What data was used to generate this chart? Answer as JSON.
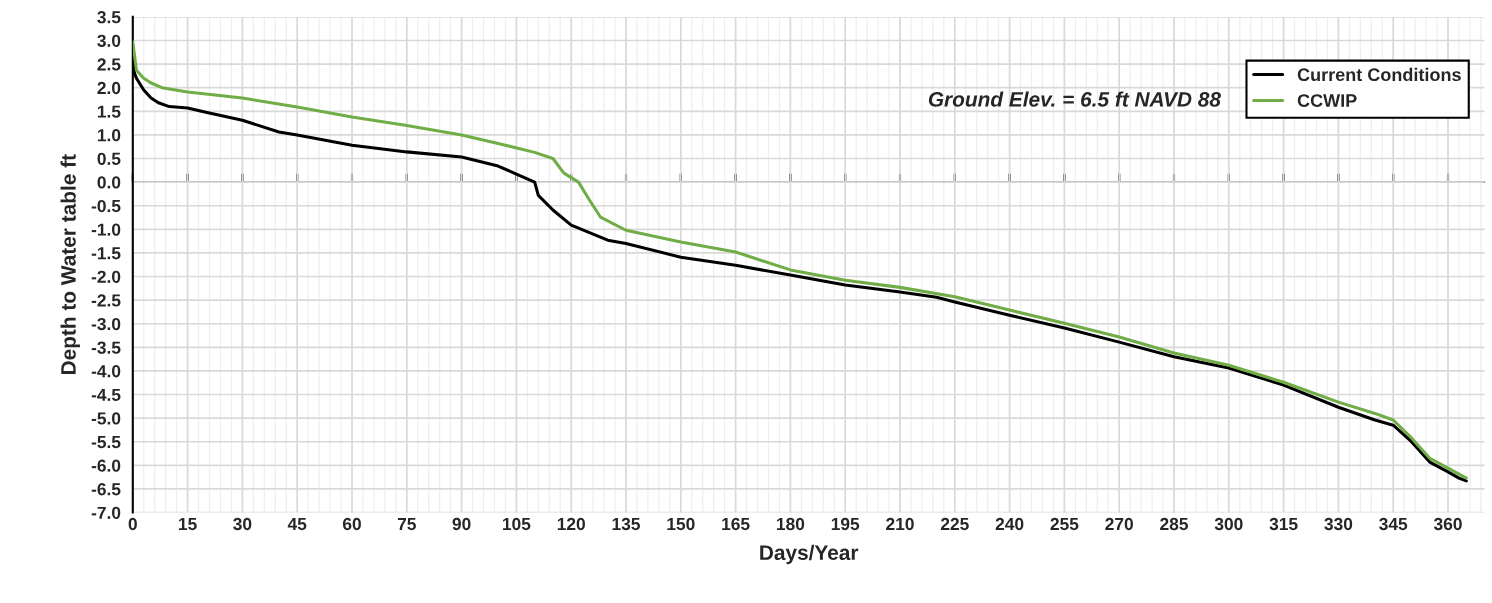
{
  "chart_data": {
    "type": "line",
    "xlabel": "Days/Year",
    "ylabel": "Depth to Water table ft",
    "annotations": [
      "Ground Elev. = 6.5 ft NAVD 88"
    ],
    "xlim": [
      0,
      370
    ],
    "xticks": [
      0,
      15,
      30,
      45,
      60,
      75,
      90,
      105,
      120,
      135,
      150,
      165,
      180,
      195,
      210,
      225,
      240,
      255,
      270,
      285,
      300,
      315,
      330,
      345,
      360
    ],
    "ylim": [
      -7,
      3.5
    ],
    "yticks": [
      {
        "value": 3.5,
        "label": "3.5"
      },
      {
        "value": 3,
        "label": "3.0"
      },
      {
        "value": 2.5,
        "label": "2.5"
      },
      {
        "value": 2,
        "label": "2.0"
      },
      {
        "value": 1.5,
        "label": "1.5"
      },
      {
        "value": 1,
        "label": "1.0"
      },
      {
        "value": 0.5,
        "label": "0.5"
      },
      {
        "value": 0,
        "label": "0.0"
      },
      {
        "value": -0.5,
        "label": "-0.5"
      },
      {
        "value": -1,
        "label": "-1.0"
      },
      {
        "value": -1.5,
        "label": "-1.5"
      },
      {
        "value": -2,
        "label": "-2.0"
      },
      {
        "value": -2.5,
        "label": "-2.5"
      },
      {
        "value": -3,
        "label": "-3.0"
      },
      {
        "value": -3.5,
        "label": "-3.5"
      },
      {
        "value": -4,
        "label": "-4.0"
      },
      {
        "value": -4.5,
        "label": "-4.5"
      },
      {
        "value": -5,
        "label": "-5.0"
      },
      {
        "value": -5.5,
        "label": "-5.5"
      },
      {
        "value": -6,
        "label": "-6.0"
      },
      {
        "value": -6.5,
        "label": "-6.5"
      },
      {
        "value": -7,
        "label": "-7.0"
      }
    ],
    "grid": true,
    "legend": "top right",
    "marker": "none",
    "line_style": "solid",
    "series": [
      {
        "name": "Current Conditions",
        "color": "#000000",
        "x": [
          0,
          0.5,
          1,
          3,
          5,
          7,
          10,
          15,
          20,
          30,
          40,
          45,
          60,
          75,
          90,
          100,
          105,
          110,
          111,
          115,
          120,
          130,
          135,
          150,
          165,
          180,
          195,
          210,
          220,
          225,
          240,
          255,
          270,
          285,
          300,
          315,
          330,
          340,
          345,
          350,
          355,
          360,
          363,
          365
        ],
        "values": [
          2.9,
          2.3,
          2.2,
          1.95,
          1.78,
          1.68,
          1.6,
          1.57,
          1.48,
          1.31,
          1.06,
          1.0,
          0.78,
          0.64,
          0.53,
          0.34,
          0.17,
          0.0,
          -0.28,
          -0.59,
          -0.91,
          -1.23,
          -1.3,
          -1.59,
          -1.76,
          -1.97,
          -2.18,
          -2.33,
          -2.44,
          -2.54,
          -2.82,
          -3.09,
          -3.39,
          -3.7,
          -3.94,
          -4.3,
          -4.77,
          -5.04,
          -5.15,
          -5.5,
          -5.93,
          -6.14,
          -6.27,
          -6.33
        ]
      },
      {
        "name": "CCWIP",
        "color": "#70ad47",
        "x": [
          0,
          1,
          3,
          5,
          8,
          15,
          30,
          45,
          60,
          75,
          90,
          100,
          110,
          115,
          118,
          122,
          125,
          128,
          135,
          150,
          165,
          180,
          195,
          210,
          225,
          240,
          255,
          270,
          285,
          300,
          315,
          330,
          340,
          345,
          350,
          355,
          360,
          365
        ],
        "values": [
          2.97,
          2.37,
          2.2,
          2.1,
          2.0,
          1.91,
          1.78,
          1.59,
          1.38,
          1.2,
          1.0,
          0.82,
          0.63,
          0.5,
          0.19,
          0.0,
          -0.38,
          -0.74,
          -1.02,
          -1.27,
          -1.48,
          -1.86,
          -2.08,
          -2.23,
          -2.43,
          -2.71,
          -2.99,
          -3.28,
          -3.62,
          -3.88,
          -4.24,
          -4.66,
          -4.9,
          -5.04,
          -5.42,
          -5.85,
          -6.06,
          -6.27
        ]
      }
    ]
  }
}
